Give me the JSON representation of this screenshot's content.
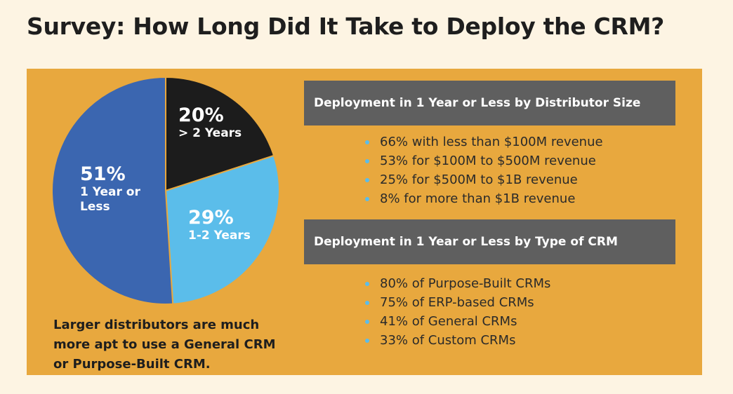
{
  "chart_data": {
    "type": "pie",
    "title": "Survey: How Long Did It Take to Deploy the CRM?",
    "categories": [
      "> 2 Years",
      "1-2 Years",
      "1 Year or Less"
    ],
    "values": [
      20,
      29,
      51
    ],
    "value_labels": [
      "20%",
      "29%",
      "51%"
    ],
    "colors": [
      "#1c1c1c",
      "#5bbdea",
      "#3b66b0"
    ]
  },
  "note": "Larger distributors are much more apt to use a General CRM or Purpose-Built CRM.",
  "sections": [
    {
      "heading": "Deployment in 1 Year or Less by Distributor Size",
      "items": [
        "66% with less than $100M revenue",
        "53% for $100M to $500M revenue",
        "25% for $500M to $1B revenue",
        "8% for more than $1B revenue"
      ]
    },
    {
      "heading": "Deployment in 1 Year or Less by Type of CRM",
      "items": [
        "80% of Purpose-Built CRMs",
        "75% of ERP-based CRMs",
        "41% of General CRMs",
        "33% of Custom CRMs"
      ]
    }
  ]
}
